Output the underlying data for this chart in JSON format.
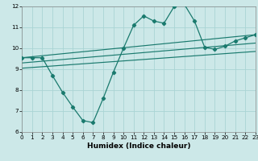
{
  "title": "",
  "xlabel": "Humidex (Indice chaleur)",
  "xlim": [
    0,
    23
  ],
  "ylim": [
    6,
    12
  ],
  "xticks": [
    0,
    1,
    2,
    3,
    4,
    5,
    6,
    7,
    8,
    9,
    10,
    11,
    12,
    13,
    14,
    15,
    16,
    17,
    18,
    19,
    20,
    21,
    22,
    23
  ],
  "yticks": [
    6,
    7,
    8,
    9,
    10,
    11,
    12
  ],
  "bg_color": "#cce8e8",
  "line_color": "#1a7a6e",
  "curve_x": [
    0,
    1,
    2,
    3,
    4,
    5,
    6,
    7,
    8,
    9,
    10,
    11,
    12,
    13,
    14,
    15,
    16,
    17,
    18,
    19,
    20,
    21,
    22,
    23
  ],
  "curve_y": [
    9.55,
    9.55,
    9.55,
    8.7,
    7.9,
    7.2,
    6.55,
    6.45,
    7.6,
    8.85,
    10.0,
    11.1,
    11.55,
    11.3,
    11.2,
    12.0,
    12.1,
    11.3,
    10.05,
    9.95,
    10.1,
    10.35,
    10.5,
    10.65
  ],
  "line1_x": [
    0,
    23
  ],
  "line1_y": [
    9.55,
    10.65
  ],
  "line2_x": [
    0,
    23
  ],
  "line2_y": [
    9.3,
    10.25
  ],
  "line3_x": [
    0,
    23
  ],
  "line3_y": [
    9.05,
    9.85
  ],
  "grid_color": "#aad4d4",
  "xlabel_fontsize": 6.5,
  "tick_fontsize": 5.2
}
